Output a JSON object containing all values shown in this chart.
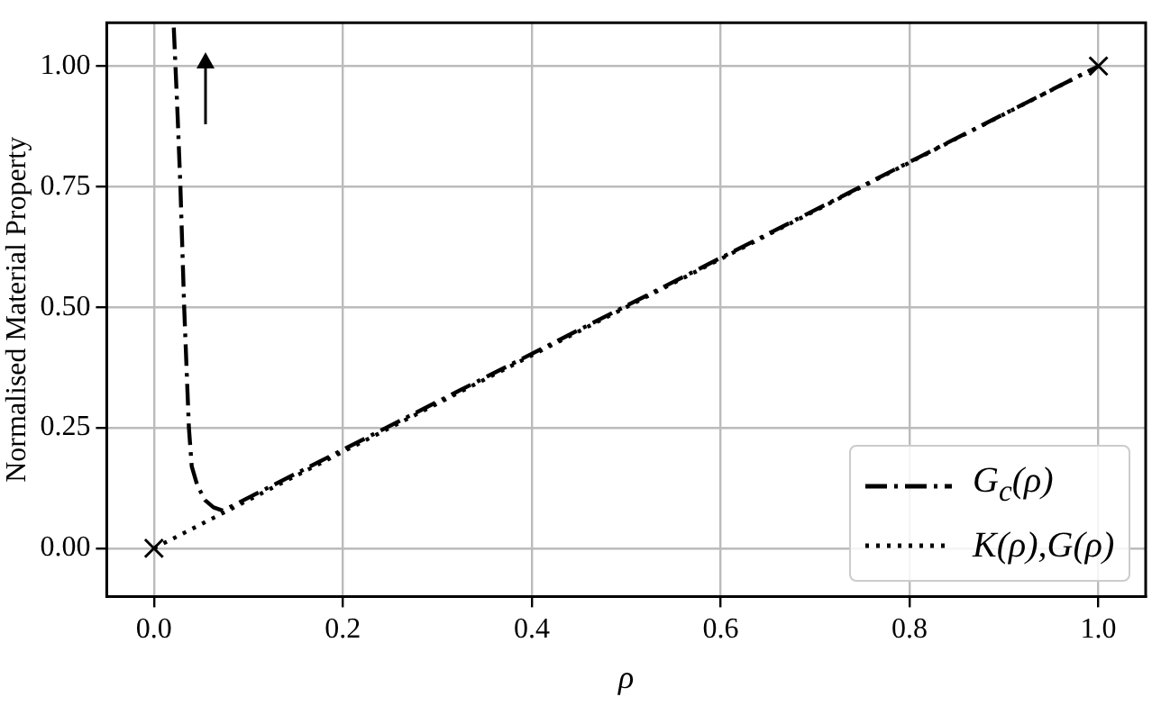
{
  "chart_data": {
    "type": "line",
    "xlabel": "ρ",
    "ylabel": "Normalised Material Property",
    "xlim": [
      -0.05,
      1.05
    ],
    "ylim": [
      -0.1,
      1.09
    ],
    "xticks": [
      {
        "value": 0,
        "label": "0.0"
      },
      0.2,
      0.4,
      0.6,
      0.8,
      {
        "value": 1,
        "label": "1.0"
      }
    ],
    "yticks": [
      {
        "value": 0,
        "label": "0.00"
      },
      0.25,
      {
        "value": 0.5,
        "label": "0.50"
      },
      0.75,
      {
        "value": 1,
        "label": "1.00"
      }
    ],
    "grid": true,
    "legend": "bottom right",
    "series": [
      {
        "name": "G$_{c}$(ρ)",
        "color": "#000000",
        "line_style": "dashdot",
        "x": [
          0.021,
          0.025,
          0.028,
          0.032,
          0.037,
          0.04,
          0.046,
          0.054,
          0.063,
          0.073,
          1.0
        ],
        "values": [
          1.08,
          0.9,
          0.75,
          0.5,
          0.25,
          0.17,
          0.13,
          0.1,
          0.085,
          0.078,
          1.0
        ]
      },
      {
        "name": "K(ρ),G(ρ)",
        "color": "#000000",
        "line_style": "dotted",
        "x": [
          0,
          1
        ],
        "values": [
          0,
          1
        ]
      },
      {
        "type": "scatter",
        "marker": "cross",
        "color": "#000000",
        "x": [
          0,
          1
        ],
        "values": [
          0,
          1
        ]
      }
    ]
  }
}
